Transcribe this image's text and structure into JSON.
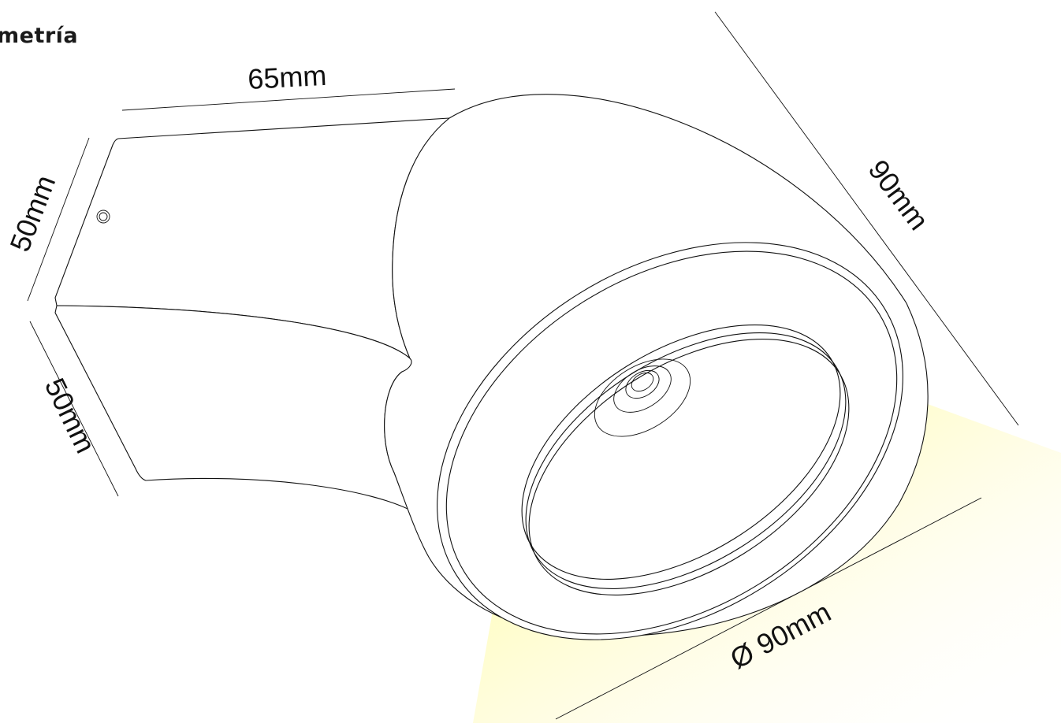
{
  "title": "metría",
  "dimensions": {
    "length": "65mm",
    "height_upper": "50mm",
    "height_lower": "50mm",
    "head_depth": "90mm",
    "diameter": "Ø 90mm"
  },
  "colors": {
    "line": "#111111",
    "light_core": "#ffff33",
    "light_beam": "#fffbe0",
    "background": "#ffffff"
  }
}
